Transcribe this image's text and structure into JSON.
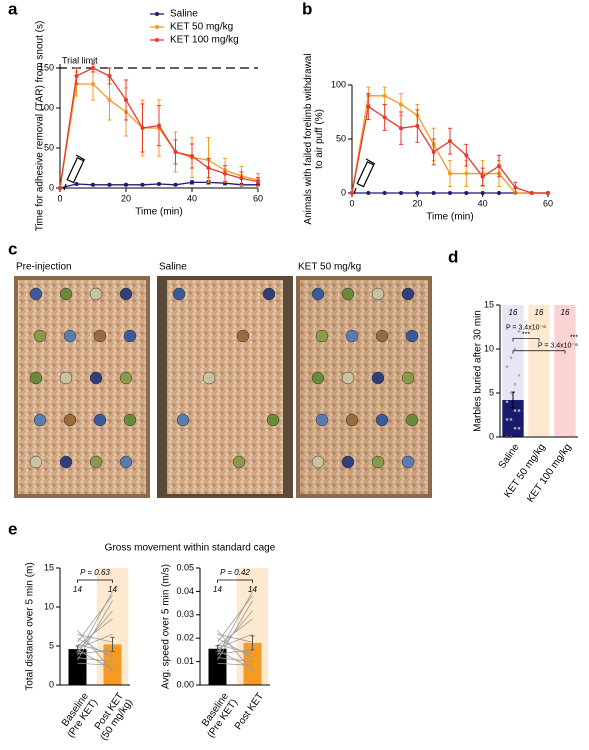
{
  "chart_data": [
    {
      "panel": "a",
      "type": "line",
      "y_label": "Time for adhesive removal (TAR) from snout (s)",
      "x_label": "Time (min)",
      "x": [
        0,
        5,
        10,
        15,
        20,
        25,
        30,
        35,
        40,
        45,
        50,
        55,
        60
      ],
      "xlim": [
        0,
        60
      ],
      "xticks": [
        0,
        20,
        40,
        60
      ],
      "ylim": [
        0,
        155
      ],
      "yticks": [
        0,
        50,
        100,
        150
      ],
      "legend": "top",
      "trial_limit": {
        "label": "Trial limit",
        "value": 150
      },
      "series": [
        {
          "name": "Saline",
          "color": "#1c1c78",
          "values": [
            0,
            5,
            4,
            4,
            4,
            4,
            5,
            4,
            7,
            7,
            6,
            4,
            4
          ],
          "errors": [
            0,
            1,
            1,
            1,
            1,
            1,
            1,
            1,
            2,
            2,
            2,
            1,
            1
          ]
        },
        {
          "name": "KET 50 mg/kg",
          "color": "#f59a23",
          "values": [
            0,
            130,
            130,
            110,
            95,
            75,
            75,
            45,
            38,
            35,
            22,
            15,
            10
          ],
          "errors": [
            0,
            15,
            20,
            25,
            30,
            35,
            35,
            25,
            25,
            28,
            15,
            12,
            8
          ]
        },
        {
          "name": "KET 100 mg/kg",
          "color": "#e8392b",
          "values": [
            0,
            140,
            150,
            140,
            110,
            75,
            78,
            45,
            40,
            25,
            18,
            12,
            8
          ],
          "errors": [
            0,
            10,
            5,
            10,
            25,
            30,
            25,
            15,
            15,
            12,
            10,
            8,
            5
          ]
        }
      ]
    },
    {
      "panel": "b",
      "type": "line",
      "y_label": "Animals with failed forelimb withdrawal to air puff (%)",
      "x_label": "Time (min)",
      "x": [
        0,
        5,
        10,
        15,
        20,
        25,
        30,
        35,
        40,
        45,
        50,
        55,
        60
      ],
      "xlim": [
        0,
        60
      ],
      "xticks": [
        0,
        20,
        40,
        60
      ],
      "ylim": [
        0,
        100
      ],
      "yticks": [
        0,
        50,
        100
      ],
      "series": [
        {
          "color": "#1c1c78",
          "values": [
            0,
            0,
            0,
            0,
            0,
            0,
            0,
            0,
            0,
            0,
            0,
            0,
            0
          ],
          "errors": [
            0,
            0,
            0,
            0,
            0,
            0,
            0,
            0,
            0,
            0,
            0,
            0,
            0
          ]
        },
        {
          "color": "#f59a23",
          "values": [
            0,
            90,
            90,
            82,
            72,
            45,
            18,
            18,
            18,
            18,
            0,
            0,
            0
          ],
          "errors": [
            0,
            8,
            8,
            10,
            10,
            15,
            12,
            12,
            12,
            12,
            0,
            0,
            0
          ]
        },
        {
          "color": "#e8392b",
          "values": [
            0,
            80,
            70,
            60,
            62,
            38,
            48,
            35,
            15,
            25,
            5,
            0,
            0
          ],
          "errors": [
            0,
            12,
            12,
            15,
            15,
            12,
            12,
            10,
            8,
            10,
            5,
            0,
            0
          ]
        }
      ]
    },
    {
      "panel": "d",
      "type": "bar",
      "y_label": "Marbles buried after 30 min",
      "categories": [
        "Saline",
        "KET 50 mg/kg",
        "KET 100 mg/kg"
      ],
      "values": [
        4.2,
        15,
        15
      ],
      "errors": [
        0.9,
        0,
        0
      ],
      "colors": [
        "#1a1a6e",
        "#fde9cf",
        "#fbd3d3"
      ],
      "n_labels": [
        16,
        16,
        16
      ],
      "points": [
        0,
        0,
        1,
        1,
        2,
        2,
        3,
        3,
        4,
        5,
        6,
        7,
        8,
        9,
        10,
        12
      ],
      "ylim": [
        0,
        15
      ],
      "yticks": [
        0,
        5,
        10,
        15
      ],
      "comparisons": [
        {
          "stars": "***",
          "text": "P = 3.4x10⁻⁶"
        },
        {
          "stars": "***",
          "text": "P = 3.4x10⁻⁶"
        }
      ]
    },
    {
      "panel": "e",
      "type": "paired_bar",
      "title": "Gross movement within standard cage",
      "y_label": "Total distance over 5 min (m)",
      "categories": [
        "Baseline (Pre KET)",
        "Post KET (50 mg/kg)"
      ],
      "values": [
        4.6,
        5.2
      ],
      "errors": [
        0.4,
        0.9
      ],
      "colors": [
        "#000000",
        "#f59a23"
      ],
      "n_labels": [
        14,
        14
      ],
      "p_text": "P = 0.63",
      "before": [
        2.8,
        3.2,
        3.5,
        3.8,
        4.0,
        4.2,
        4.5,
        4.7,
        5.0,
        5.2,
        5.5,
        6.0,
        6.5,
        7.0
      ],
      "after": [
        2.5,
        10.8,
        3.0,
        12.0,
        4.5,
        9.5,
        2.0,
        6.5,
        8.5,
        4.0,
        11.5,
        3.5,
        5.5,
        1.8
      ],
      "ylim": [
        0,
        15
      ],
      "yticks": [
        0,
        5,
        10,
        15
      ]
    },
    {
      "type": "paired_bar",
      "y_label": "Avg. speed over 5 min (m/s)",
      "categories": [
        "Baseline (Pre KET)",
        "Post KET"
      ],
      "values": [
        0.0155,
        0.018
      ],
      "errors": [
        0.0013,
        0.003
      ],
      "colors": [
        "#000000",
        "#f59a23"
      ],
      "n_labels": [
        14,
        14
      ],
      "p_text": "P = 0.42",
      "before": [
        0.0093,
        0.0107,
        0.0117,
        0.0127,
        0.0133,
        0.014,
        0.015,
        0.0157,
        0.0167,
        0.0173,
        0.0183,
        0.02,
        0.0217,
        0.0233
      ],
      "after": [
        0.0083,
        0.036,
        0.01,
        0.04,
        0.015,
        0.0317,
        0.0067,
        0.0217,
        0.0283,
        0.0133,
        0.0383,
        0.0117,
        0.0183,
        0.006
      ],
      "ylim": [
        0,
        0.05
      ],
      "yticks": [
        {
          "value": 0,
          "label": "0.00"
        },
        0.01,
        0.02,
        0.03,
        0.04,
        0.05
      ]
    }
  ],
  "photos": {
    "panel": "c",
    "labels": [
      "Pre-injection",
      "Saline",
      "KET 50 mg/kg"
    ]
  }
}
